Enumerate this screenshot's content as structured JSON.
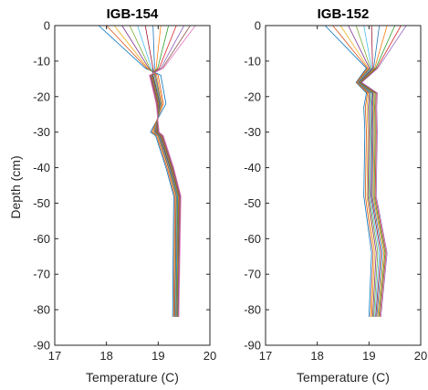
{
  "chart_data": [
    {
      "type": "line",
      "title": "IGB-154",
      "xlabel": "Temperature (C)",
      "ylabel": "Depth (cm)",
      "xlim": [
        17,
        20
      ],
      "ylim": [
        -90,
        0
      ],
      "xticks": [
        "17",
        "18",
        "19",
        "20"
      ],
      "yticks": [
        "0",
        "-10",
        "-20",
        "-30",
        "-40",
        "-50",
        "-60",
        "-70",
        "-80",
        "-90"
      ],
      "grid": false,
      "depths": [
        0,
        -12,
        -14,
        -22,
        -30,
        -31,
        -40,
        -48,
        -82
      ],
      "series": [
        {
          "values": [
            17.85,
            18.75,
            19.05,
            19.15,
            18.85,
            18.95,
            19.15,
            19.3,
            19.28
          ]
        },
        {
          "values": [
            18.0,
            18.78,
            19.0,
            19.1,
            18.88,
            18.97,
            19.17,
            19.32,
            19.3
          ]
        },
        {
          "values": [
            18.15,
            18.8,
            18.97,
            19.08,
            18.9,
            18.99,
            19.19,
            19.34,
            19.31
          ]
        },
        {
          "values": [
            18.3,
            18.82,
            18.95,
            19.06,
            18.92,
            19.0,
            19.2,
            19.35,
            19.32
          ]
        },
        {
          "values": [
            18.45,
            18.84,
            18.93,
            19.05,
            18.93,
            19.01,
            19.21,
            19.36,
            19.33
          ]
        },
        {
          "values": [
            18.6,
            18.87,
            18.91,
            19.04,
            18.94,
            19.02,
            19.22,
            19.37,
            19.34
          ]
        },
        {
          "values": [
            18.75,
            18.9,
            18.9,
            19.03,
            18.95,
            19.03,
            19.23,
            19.38,
            19.35
          ]
        },
        {
          "values": [
            18.9,
            18.93,
            18.89,
            19.02,
            18.96,
            19.04,
            19.24,
            19.38,
            19.35
          ]
        },
        {
          "values": [
            19.05,
            18.96,
            18.88,
            19.01,
            18.97,
            19.05,
            19.25,
            19.39,
            19.36
          ]
        },
        {
          "values": [
            19.2,
            18.99,
            18.87,
            19.0,
            18.98,
            19.06,
            19.26,
            19.4,
            19.37
          ]
        },
        {
          "values": [
            19.35,
            19.02,
            18.86,
            18.99,
            18.99,
            19.07,
            19.27,
            19.41,
            19.38
          ]
        },
        {
          "values": [
            19.5,
            19.05,
            18.85,
            18.98,
            19.0,
            19.08,
            19.28,
            19.42,
            19.38
          ]
        },
        {
          "values": [
            19.62,
            19.08,
            18.84,
            18.97,
            19.01,
            19.09,
            19.29,
            19.43,
            19.39
          ]
        },
        {
          "values": [
            19.72,
            19.1,
            18.83,
            18.96,
            19.02,
            19.1,
            19.3,
            19.44,
            19.4
          ]
        }
      ]
    },
    {
      "type": "line",
      "title": "IGB-152",
      "xlabel": "Temperature (C)",
      "ylabel": "",
      "xlim": [
        17,
        20
      ],
      "ylim": [
        -90,
        0
      ],
      "xticks": [
        "17",
        "18",
        "19",
        "20"
      ],
      "yticks": [
        "0",
        "-10",
        "-20",
        "-30",
        "-40",
        "-50",
        "-60",
        "-70",
        "-80",
        "-90"
      ],
      "grid": false,
      "depths": [
        0,
        -12,
        -16,
        -19,
        -23,
        -30,
        -48,
        -64,
        -82
      ],
      "series": [
        {
          "values": [
            18.15,
            18.95,
            18.75,
            18.95,
            18.9,
            18.92,
            18.9,
            19.05,
            19.0
          ]
        },
        {
          "values": [
            18.3,
            18.97,
            18.76,
            18.97,
            18.93,
            18.95,
            18.93,
            19.08,
            19.03
          ]
        },
        {
          "values": [
            18.45,
            18.99,
            18.77,
            18.99,
            18.96,
            18.98,
            18.96,
            19.11,
            19.05
          ]
        },
        {
          "values": [
            18.6,
            19.01,
            18.78,
            19.01,
            18.99,
            19.0,
            18.98,
            19.14,
            19.07
          ]
        },
        {
          "values": [
            18.75,
            19.03,
            18.79,
            19.03,
            19.01,
            19.02,
            19.0,
            19.17,
            19.09
          ]
        },
        {
          "values": [
            18.9,
            19.05,
            18.8,
            19.05,
            19.03,
            19.04,
            19.02,
            19.2,
            19.11
          ]
        },
        {
          "values": [
            19.05,
            19.07,
            18.81,
            19.07,
            19.05,
            19.06,
            19.04,
            19.23,
            19.13
          ]
        },
        {
          "values": [
            19.2,
            19.09,
            18.82,
            19.08,
            19.07,
            19.08,
            19.06,
            19.26,
            19.15
          ]
        },
        {
          "values": [
            19.35,
            19.11,
            18.83,
            19.1,
            19.09,
            19.1,
            19.08,
            19.29,
            19.17
          ]
        },
        {
          "values": [
            19.5,
            19.13,
            18.84,
            19.12,
            19.11,
            19.12,
            19.1,
            19.31,
            19.19
          ]
        },
        {
          "values": [
            19.62,
            19.15,
            18.85,
            19.14,
            19.13,
            19.14,
            19.12,
            19.33,
            19.21
          ]
        },
        {
          "values": [
            19.72,
            19.17,
            18.86,
            19.16,
            19.15,
            19.16,
            19.14,
            19.35,
            19.23
          ]
        }
      ]
    }
  ],
  "colors": {
    "axis": "#262626",
    "series_palette": [
      "#0072BD",
      "#D95319",
      "#EDB120",
      "#7E2F8E",
      "#77AC30",
      "#4DBEEE",
      "#A2142F",
      "#1f77b4",
      "#ff7f0e",
      "#2ca02c",
      "#d62728",
      "#9467bd",
      "#8c564b",
      "#e377c2"
    ]
  }
}
